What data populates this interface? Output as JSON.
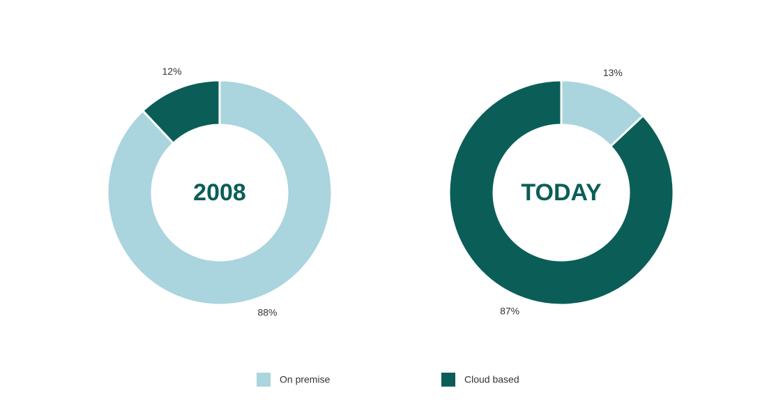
{
  "chart_data": [
    {
      "type": "pie",
      "title": "2008",
      "categories": [
        "On premise",
        "Cloud based"
      ],
      "values": [
        88,
        12
      ],
      "value_labels": [
        "88%",
        "12%"
      ],
      "colors": [
        "#aad4de",
        "#0b5e58"
      ],
      "legend": "bottom"
    },
    {
      "type": "pie",
      "title": "TODAY",
      "categories": [
        "On premise",
        "Cloud based"
      ],
      "values": [
        13,
        87
      ],
      "value_labels": [
        "13%",
        "87%"
      ],
      "colors": [
        "#aad4de",
        "#0b5e58"
      ]
    }
  ]
}
